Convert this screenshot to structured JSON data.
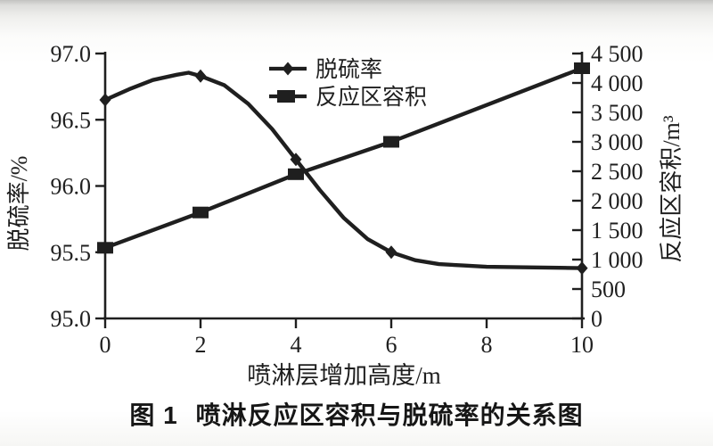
{
  "figure": {
    "caption_prefix": "图 1",
    "caption_text": "喷淋反应区容积与脱硫率的关系图"
  },
  "chart_data": {
    "type": "line",
    "title": "图 1 喷淋反应区容积与脱硫率的关系图",
    "grid": false,
    "line_color": "#1f1f1f",
    "x": [
      0,
      2,
      4,
      6,
      10
    ],
    "series": [
      {
        "name": "脱硫率",
        "axis": "left",
        "marker": "diamond",
        "values": [
          96.65,
          96.83,
          96.2,
          95.5,
          95.38
        ],
        "smooth_curve": [
          [
            0,
            96.65
          ],
          [
            0.5,
            96.73
          ],
          [
            1,
            96.8
          ],
          [
            1.5,
            96.84
          ],
          [
            1.75,
            96.855
          ],
          [
            2,
            96.83
          ],
          [
            2.5,
            96.76
          ],
          [
            3,
            96.62
          ],
          [
            3.5,
            96.43
          ],
          [
            4,
            96.2
          ],
          [
            4.5,
            95.97
          ],
          [
            5,
            95.76
          ],
          [
            5.5,
            95.6
          ],
          [
            6,
            95.5
          ],
          [
            6.5,
            95.44
          ],
          [
            7,
            95.41
          ],
          [
            7.5,
            95.4
          ],
          [
            8,
            95.39
          ],
          [
            9,
            95.385
          ],
          [
            10,
            95.38
          ]
        ]
      },
      {
        "name": "反应区容积",
        "axis": "right",
        "marker": "square",
        "values": [
          1200,
          1800,
          2450,
          3000,
          4250
        ]
      }
    ],
    "x_axis": {
      "label": "喷淋层增加高度/m",
      "range": [
        0,
        10
      ],
      "tick_values": [
        0,
        2,
        4,
        6,
        8,
        10
      ],
      "ticks": [
        "0",
        "2",
        "4",
        "6",
        "8",
        "10"
      ]
    },
    "y_left": {
      "label": "脱硫率/%",
      "range": [
        95.0,
        97.0
      ],
      "tick_values": [
        97.0,
        96.5,
        96.0,
        95.5,
        95.0
      ],
      "ticks": [
        "97.0",
        "96.5",
        "96.0",
        "95.5",
        "95.0"
      ]
    },
    "y_right": {
      "label": "反应区容积/m³",
      "range": [
        0,
        4500
      ],
      "tick_values": [
        4500,
        4000,
        3500,
        3000,
        2500,
        2000,
        1500,
        1000,
        500,
        0
      ],
      "ticks": [
        "4 500",
        "4 000",
        "3 500",
        "3 000",
        "2 500",
        "2 000",
        "1 500",
        "1 000",
        "500",
        "0"
      ]
    },
    "legend": {
      "position": "inside-top-center",
      "entries": [
        "脱硫率",
        "反应区容积"
      ]
    }
  }
}
